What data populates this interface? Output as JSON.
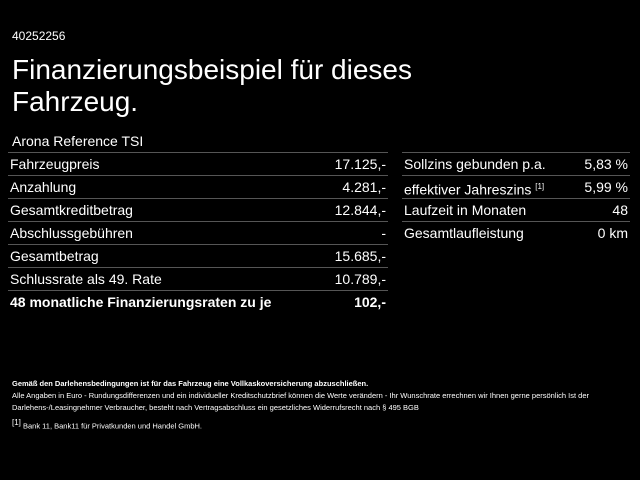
{
  "header": {
    "id": "40252256",
    "title": "Finanzierungsbeispiel für dieses Fahrzeug.",
    "model": "Arona Reference TSI"
  },
  "left_table": {
    "rows": [
      [
        "Fahrzeugpreis",
        "17.125,-"
      ],
      [
        "Anzahlung",
        "4.281,-"
      ],
      [
        "Gesamtkreditbetrag",
        "12.844,-"
      ],
      [
        "Abschlussgebühren",
        "-"
      ],
      [
        "Gesamtbetrag",
        "15.685,-"
      ],
      [
        "Schlussrate als 49. Rate",
        "10.789,-"
      ],
      [
        "48 monatliche Finanzierungsraten zu je",
        "102,-"
      ]
    ]
  },
  "right_table": {
    "rows": [
      {
        "label": "Sollzins gebunden p.a.",
        "value": "5,83 %"
      },
      {
        "label": "effektiver Jahreszins",
        "note": "[1]",
        "value": "5,99 %"
      },
      {
        "label": "Laufzeit in Monaten",
        "value": "48"
      },
      {
        "label": "Gesamtlaufleistung",
        "value": "0 km"
      }
    ]
  },
  "footer": {
    "bold": "Gemäß den Darlehensbedingungen ist für das Fahrzeug eine Vollkaskoversicherung abzuschließen.",
    "text": "Alle Angaben in Euro - Rundungsdifferenzen und ein individueller Kreditschutzbrief können die Werte verändern - Ihr Wunschrate errechnen wir Ihnen gerne persönlich Ist der Darlehens-/Leasingnehmer Verbraucher, besteht nach Vertragsabschluss ein gesetzliches Widerrufsrecht nach § 495 BGB",
    "note_marker": "[1]",
    "note_text": "Bank 11, Bank11 für Privatkunden und Handel GmbH."
  }
}
